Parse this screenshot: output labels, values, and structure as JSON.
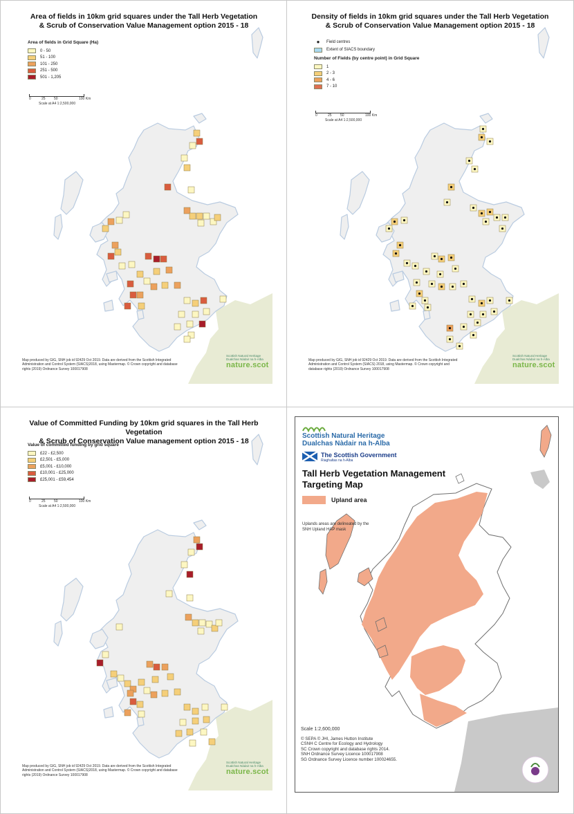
{
  "panels": {
    "area": {
      "title_line1": "Area of fields in 10km grid squares under the Tall Herb Vegetation",
      "title_line2": "& Scrub of Conservation Value Management option 2015 - 18",
      "legend_title": "Area of fields in Grid Square (Ha)",
      "legend": [
        {
          "label": "0 - 50",
          "color": "#fdf7c2"
        },
        {
          "label": "51 - 100",
          "color": "#f5cf7a"
        },
        {
          "label": "101 - 250",
          "color": "#eca15d"
        },
        {
          "label": "251 - 500",
          "color": "#d95c3f"
        },
        {
          "label": "501 - 1,205",
          "color": "#a81d2a"
        }
      ],
      "scale_ticks": [
        "0",
        "25",
        "50",
        "100 Km"
      ],
      "scale_text": "Scale at A4 1:2,500,000",
      "credits": "Map produced by GIG, SNH job id 92429 Oct 2019. Data are derived from the Scottish Integrated Administration and Control System (SIACS)2018, using Mastermap. © Crown copyright and database rights (2019) Ordnance Survey 100017908",
      "logo_small": "Scottish Natural Heritage Dualchas Nàdair na h-Alba",
      "logo_nature": "nature.scot"
    },
    "density": {
      "title_line1": "Density of fields in 10km grid squares under the Tall Herb Vegetation",
      "title_line2": "& Scrub of Conservation Value Management option 2015 - 18",
      "point_label": "Field centres",
      "boundary_label": "Extent of SIACS boundary",
      "boundary_color": "#a9d8ef",
      "legend_title": "Number of Fields (by centre point) in Grid Square",
      "legend": [
        {
          "label": "1",
          "color": "#fdf7c2"
        },
        {
          "label": "2 - 3",
          "color": "#f5cf7a"
        },
        {
          "label": "4 - 6",
          "color": "#eca15d"
        },
        {
          "label": "7 - 10",
          "color": "#df6f52"
        }
      ],
      "scale_ticks": [
        "0",
        "25",
        "50",
        "100 Km"
      ],
      "scale_text": "Scale at A4 1:2,500,000",
      "credits": "Map produced by GIG, SNH job id 92429 Oct 2019. Data are derived from the Scottish Integrated Administration and Control System (SIACS) 2018, using Mastermap. © Crown copyright and database rights (2019) Ordnance Survey 100017908",
      "logo_small": "Scottish Natural Heritage Dualchas Nàdair na h-Alba",
      "logo_nature": "nature.scot"
    },
    "funding": {
      "title_line1": "Value of Committed Funding by 10km grid squares in the Tall Herb Vegetation",
      "title_line2": "& Scrub of Conservation Value management option 2015 - 18",
      "legend_title": "Value of committed funding by grid square",
      "legend": [
        {
          "label": "£22 - £2,500",
          "color": "#fdf7c2"
        },
        {
          "label": "£2,501 - £5,000",
          "color": "#f5cf7a"
        },
        {
          "label": "£5,001 - £10,000",
          "color": "#eca15d"
        },
        {
          "label": "£10,001 - £25,000",
          "color": "#d95c3f"
        },
        {
          "label": "£25,001 - £59,454",
          "color": "#a81d2a"
        }
      ],
      "scale_ticks": [
        "0",
        "25",
        "50",
        "100 Km"
      ],
      "scale_text": "Scale at A4 1:2,500,000",
      "credits": "Map produced by GIG, SNH job id 92429 Oct 2019. Data are derived from the Scottish Integrated Administration and Control System (SIACS)2018, using Mastermap. © Crown copyright and database rights (2019) Ordnance Survey 100017908",
      "logo_small": "Scottish Natural Heritage Dualchas Nàdair na h-Alba",
      "logo_nature": "nature.scot"
    },
    "targeting": {
      "snh_line1": "Scottish Natural Heritage",
      "snh_line2": "Dualchas Nàdair na h-Alba",
      "gov_line1": "The Scottish Government",
      "gov_line2": "Riaghaltas na h-Alba",
      "title_line1": "Tall Herb Vegetation Management",
      "title_line2": "Targeting Map",
      "legend_label": "Upland area",
      "legend_color": "#f2a98a",
      "note_line1": "Uplands areas are delineated by the",
      "note_line2": "SNH Upland HAP mask",
      "scale_text": "Scale   1:2,600,000",
      "credits": [
        "© SEPA © JHI, James Hutton Institute",
        "CSNH C Centre for Ecology and Hydrology",
        "SC Crown copyright and database rights 2014.",
        "SNH Ordnance Survey Licence 100017908",
        "SG Ordnance Survey Licence number 100024655."
      ]
    }
  },
  "colors": {
    "land": "#efefef",
    "coast": "#b9cbe0",
    "england": "#e8ebd4",
    "upland": "#f2a98a",
    "outline": "#6e6e6e",
    "grey_land": "#c9c9c9",
    "point": "#111111"
  }
}
